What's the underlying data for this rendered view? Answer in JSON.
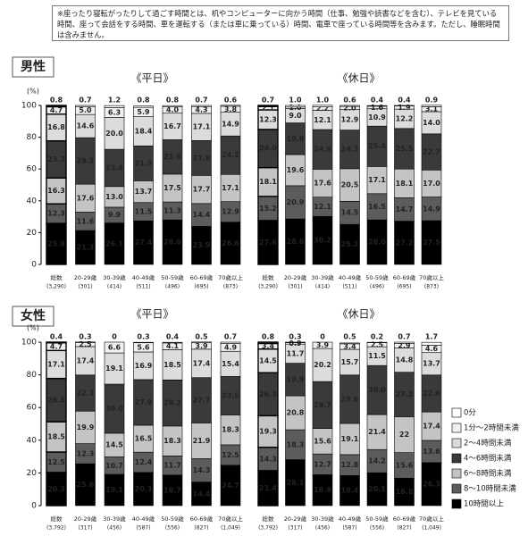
{
  "note": "※座ったり寝転がったりして過ごす時間とは、机やコンピューターに向かう時間（仕事、勉強や読書などを含む）、テレビを見ている時間、座って会話をする時間、車を運転する（または車に乗っている）時間、電車で座っている時間等を含みます。ただし、睡眠時間は含みません。",
  "chart_data": {
    "type": "stacked_bar",
    "ylabel": "(%)",
    "ylim": [
      0,
      100
    ],
    "yticks": [
      0,
      20,
      40,
      60,
      80,
      100
    ],
    "series": [
      {
        "name": "0分",
        "color": "#ffffff"
      },
      {
        "name": "1分～2時間未満",
        "color": "#f0f0f0"
      },
      {
        "name": "2～4時間未満",
        "color": "#dcdcdc"
      },
      {
        "name": "4～6時間未満",
        "color": "#3a3a3a"
      },
      {
        "name": "6～8時間未満",
        "color": "#c4c4c4"
      },
      {
        "name": "8～10時間未満",
        "color": "#5c5c5c"
      },
      {
        "name": "10時間以上",
        "color": "#000000"
      }
    ],
    "panels": [
      {
        "title": "男性",
        "categories": [
          "総数",
          "20-29歳",
          "30-39歳",
          "40-49歳",
          "50-59歳",
          "60-69歳",
          "70歳以上"
        ],
        "counts": [
          "(3,290)",
          "(301)",
          "(414)",
          "(511)",
          "(496)",
          "(695)",
          "(873)"
        ],
        "groups": [
          {
            "title": "《平日》",
            "series": [
              {
                "values": [
                  0.8,
                  0.7,
                  1.2,
                  0.8,
                  0.8,
                  0.7,
                  0.6
                ]
              },
              {
                "values": [
                  4.7,
                  5.0,
                  6.3,
                  5.9,
                  4.0,
                  4.3,
                  3.8
                ],
                "value_labels": [
                  "4.7",
                  "5.0",
                  "6.3",
                  "5.9",
                  "4.0",
                  "4.3",
                  "3.8"
                ]
              },
              {
                "values": [
                  16.8,
                  14.6,
                  20.0,
                  18.4,
                  16.7,
                  17.1,
                  14.9
                ],
                "value_labels": [
                  "16.8",
                  "14.6",
                  "20.0",
                  "18.4",
                  "16.7",
                  "17.1",
                  "14.9"
                ]
              },
              {
                "values": [
                  23.3,
                  29.2,
                  23.4,
                  21.9,
                  21.6,
                  21.9,
                  24.2
                ]
              },
              {
                "values": [
                  16.3,
                  17.6,
                  13.0,
                  13.7,
                  17.5,
                  17.7,
                  17.1
                ],
                "value_labels": [
                  "16.3",
                  "17.6",
                  "13.0",
                  "13.7",
                  "17.5",
                  "17.7",
                  "17.1"
                ]
              },
              {
                "values": [
                  12.3,
                  11.6,
                  9.9,
                  11.5,
                  11.3,
                  14.4,
                  12.9
                ]
              },
              {
                "values": [
                  25.8,
                  21.3,
                  26.1,
                  27.4,
                  28.0,
                  23.9,
                  26.6
                ],
                "value_labels": [
                  "25.8",
                  "21.3",
                  "26.1",
                  "27.4",
                  "28.0",
                  "23.9",
                  "26.6"
                ]
              }
            ]
          },
          {
            "title": "《休日》",
            "series": [
              {
                "values": [
                  0.7,
                  1.0,
                  1.0,
                  0.6,
                  0.4,
                  0.4,
                  0.9
                ],
                "value_labels": [
                  "0.7",
                  "1.0",
                  "1.0",
                  "0.6",
                  "0.4",
                  "0.4",
                  "0.9"
                ]
              },
              {
                "values": [
                  2.1,
                  1.0,
                  2.2,
                  2.0,
                  1.6,
                  1.9,
                  3.1
                ],
                "value_labels": [
                  "2.1",
                  "1.0",
                  "2.2",
                  "2.0",
                  "1.6",
                  "1.9",
                  "3.1"
                ]
              },
              {
                "values": [
                  12.3,
                  9.0,
                  12.1,
                  12.9,
                  10.9,
                  12.2,
                  14.0
                ],
                "value_labels": [
                  "12.3",
                  "9.0",
                  "12.1",
                  "12.9",
                  "10.9",
                  "12.2",
                  "14.0"
                ]
              },
              {
                "values": [
                  24.0,
                  19.9,
                  24.9,
                  24.3,
                  25.4,
                  25.5,
                  22.7
                ],
                "value_labels": [
                  "24.0",
                  "19.9",
                  "24.9",
                  "24.3",
                  "25.4",
                  "25.5",
                  "22.7"
                ]
              },
              {
                "values": [
                  18.1,
                  19.6,
                  17.6,
                  20.5,
                  17.1,
                  18.1,
                  17.0
                ],
                "value_labels": [
                  "18.1",
                  "19.6",
                  "17.6",
                  "20.5",
                  "17.1",
                  "18.1",
                  "17.0"
                ]
              },
              {
                "values": [
                  15.2,
                  20.9,
                  12.1,
                  14.5,
                  16.5,
                  14.7,
                  14.9
                ]
              },
              {
                "values": [
                  27.6,
                  28.6,
                  30.2,
                  25.2,
                  28.0,
                  27.2,
                  27.5
                ],
                "value_labels": [
                  "27.6",
                  "28.6",
                  "30.2",
                  "25.2",
                  "28.0",
                  "27.2",
                  "27.5"
                ]
              }
            ]
          }
        ]
      },
      {
        "title": "女性",
        "categories": [
          "総数",
          "20-29歳",
          "30-39歳",
          "40-49歳",
          "50-59歳",
          "60-69歳",
          "70歳以上"
        ],
        "counts": [
          "(3,792)",
          "(317)",
          "(456)",
          "(587)",
          "(556)",
          "(827)",
          "(1,049)"
        ],
        "groups": [
          {
            "title": "《平日》",
            "series": [
              {
                "values": [
                  0.4,
                  0.3,
                  0,
                  0.3,
                  0.4,
                  0.5,
                  0.7
                ]
              },
              {
                "values": [
                  4.7,
                  2.5,
                  6.6,
                  5.6,
                  4.1,
                  3.9,
                  4.9
                ]
              },
              {
                "values": [
                  17.1,
                  17.4,
                  19.1,
                  16.9,
                  18.5,
                  17.4,
                  15.4
                ]
              },
              {
                "values": [
                  26.5,
                  22.1,
                  30.0,
                  27.9,
                  28.2,
                  27.7,
                  23.5
                ],
                "value_labels": [
                  "26.5",
                  "22.1",
                  "30.0",
                  "27.9",
                  "28.2",
                  "27.7",
                  "23.5"
                ]
              },
              {
                "values": [
                  18.5,
                  19.9,
                  14.5,
                  16.5,
                  18.3,
                  21.9,
                  18.3
                ]
              },
              {
                "values": [
                  12.5,
                  12.3,
                  10.7,
                  12.4,
                  11.7,
                  14.3,
                  12.5
                ]
              },
              {
                "values": [
                  20.3,
                  25.6,
                  19.1,
                  20.3,
                  18.7,
                  14.4,
                  24.7
                ]
              }
            ]
          },
          {
            "title": "《休日》",
            "series": [
              {
                "values": [
                  0.8,
                  0.3,
                  0,
                  0.5,
                  0.2,
                  0.7,
                  1.7
                ]
              },
              {
                "values": [
                  3.4,
                  0.9,
                  3.9,
                  3.4,
                  2.5,
                  2.9,
                  4.6
                ]
              },
              {
                "values": [
                  14.5,
                  11.7,
                  20.2,
                  15.7,
                  11.5,
                  14.8,
                  13.7
                ]
              },
              {
                "values": [
                  26.3,
                  19.9,
                  28.7,
                  29.6,
                  30.0,
                  27.2,
                  22.6
                ],
                "value_labels": [
                  "26.3",
                  "19.9",
                  "28.7",
                  "29.6",
                  "30.0",
                  "27.2",
                  "22.6"
                ]
              },
              {
                "values": [
                  19.3,
                  20.8,
                  15.6,
                  19.1,
                  21.4,
                  22,
                  17.4
                ]
              },
              {
                "values": [
                  14.3,
                  18.3,
                  12.7,
                  12.8,
                  14.2,
                  15.6,
                  13.6
                ]
              },
              {
                "values": [
                  21.4,
                  28.1,
                  18.9,
                  18.4,
                  20.1,
                  16.8,
                  26.3
                ]
              }
            ]
          }
        ]
      }
    ]
  }
}
